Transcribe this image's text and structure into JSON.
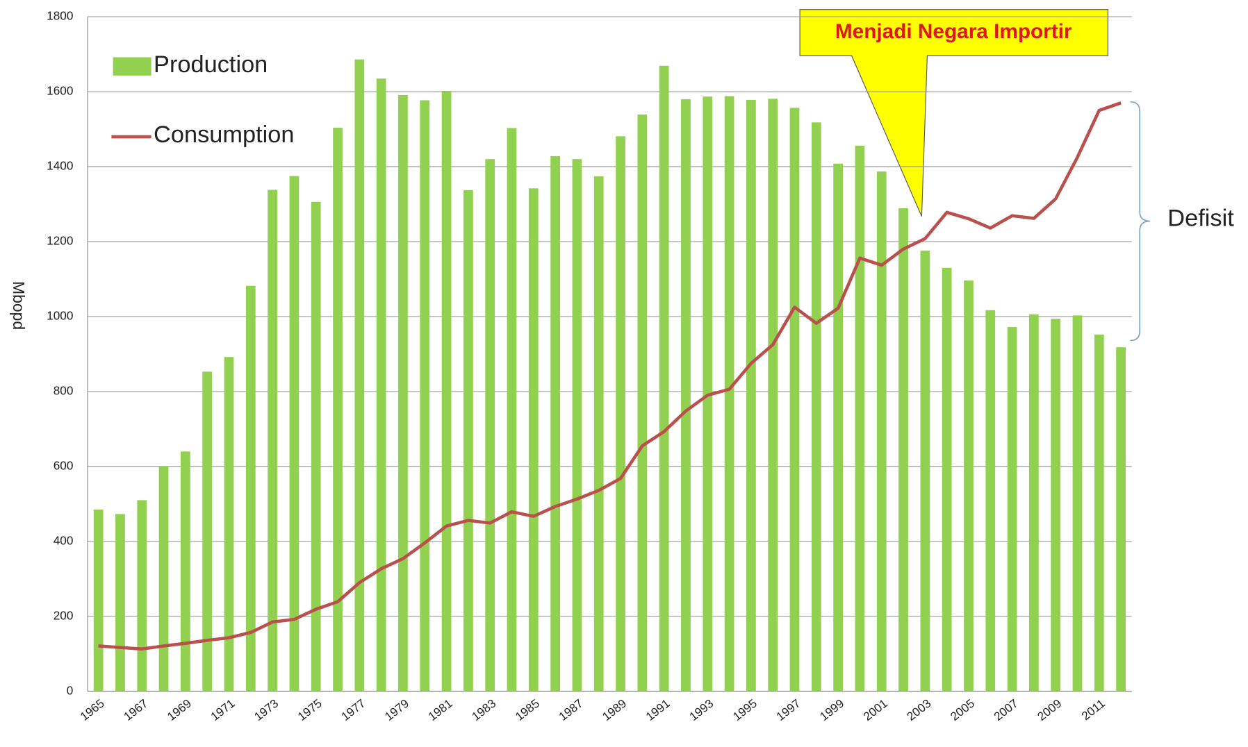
{
  "chart_data": {
    "type": "bar",
    "y_label": "Mbopd",
    "categories": [
      "1965",
      null,
      "1967",
      null,
      "1969",
      null,
      "1971",
      null,
      "1973",
      null,
      "1975",
      null,
      "1977",
      null,
      "1979",
      null,
      "1981",
      null,
      "1983",
      null,
      "1985",
      null,
      "1987",
      null,
      "1989",
      null,
      "1991",
      null,
      "1993",
      null,
      "1995",
      null,
      "1997",
      null,
      "1999",
      null,
      "2001",
      null,
      "2003",
      null,
      "2005",
      null,
      "2007",
      null,
      "2009",
      null,
      "2011",
      null
    ],
    "series": [
      {
        "name": "Production",
        "type": "bar",
        "color": "#92d050",
        "values": [
          485,
          473,
          510,
          600,
          640,
          853,
          892,
          1082,
          1338,
          1375,
          1306,
          1504,
          1686,
          1635,
          1591,
          1577,
          1602,
          1337,
          1420,
          1503,
          1342,
          1428,
          1420,
          1374,
          1481,
          1539,
          1669,
          1580,
          1587,
          1588,
          1578,
          1581,
          1557,
          1518,
          1408,
          1456,
          1387,
          1289,
          1176,
          1130,
          1096,
          1017,
          972,
          1006,
          994,
          1003,
          952,
          918
        ]
      },
      {
        "name": "Consumption",
        "type": "line",
        "color": "#b9504c",
        "values": [
          121,
          117,
          113,
          121,
          128,
          136,
          143,
          157,
          185,
          192,
          219,
          239,
          290,
          327,
          354,
          396,
          441,
          456,
          449,
          479,
          467,
          493,
          513,
          536,
          568,
          655,
          693,
          748,
          790,
          806,
          875,
          925,
          1025,
          982,
          1022,
          1156,
          1137,
          1180,
          1208,
          1278,
          1261,
          1236,
          1269,
          1262,
          1314,
          1425,
          1550,
          1570
        ]
      }
    ],
    "ylim": [
      0,
      1800
    ],
    "yticks": [
      0,
      200,
      400,
      600,
      800,
      1000,
      1200,
      1400,
      1600,
      1800
    ],
    "grid": true,
    "legend": "upper left",
    "annotations": [
      "Menjadi Negara Importir",
      "Defisit"
    ]
  }
}
